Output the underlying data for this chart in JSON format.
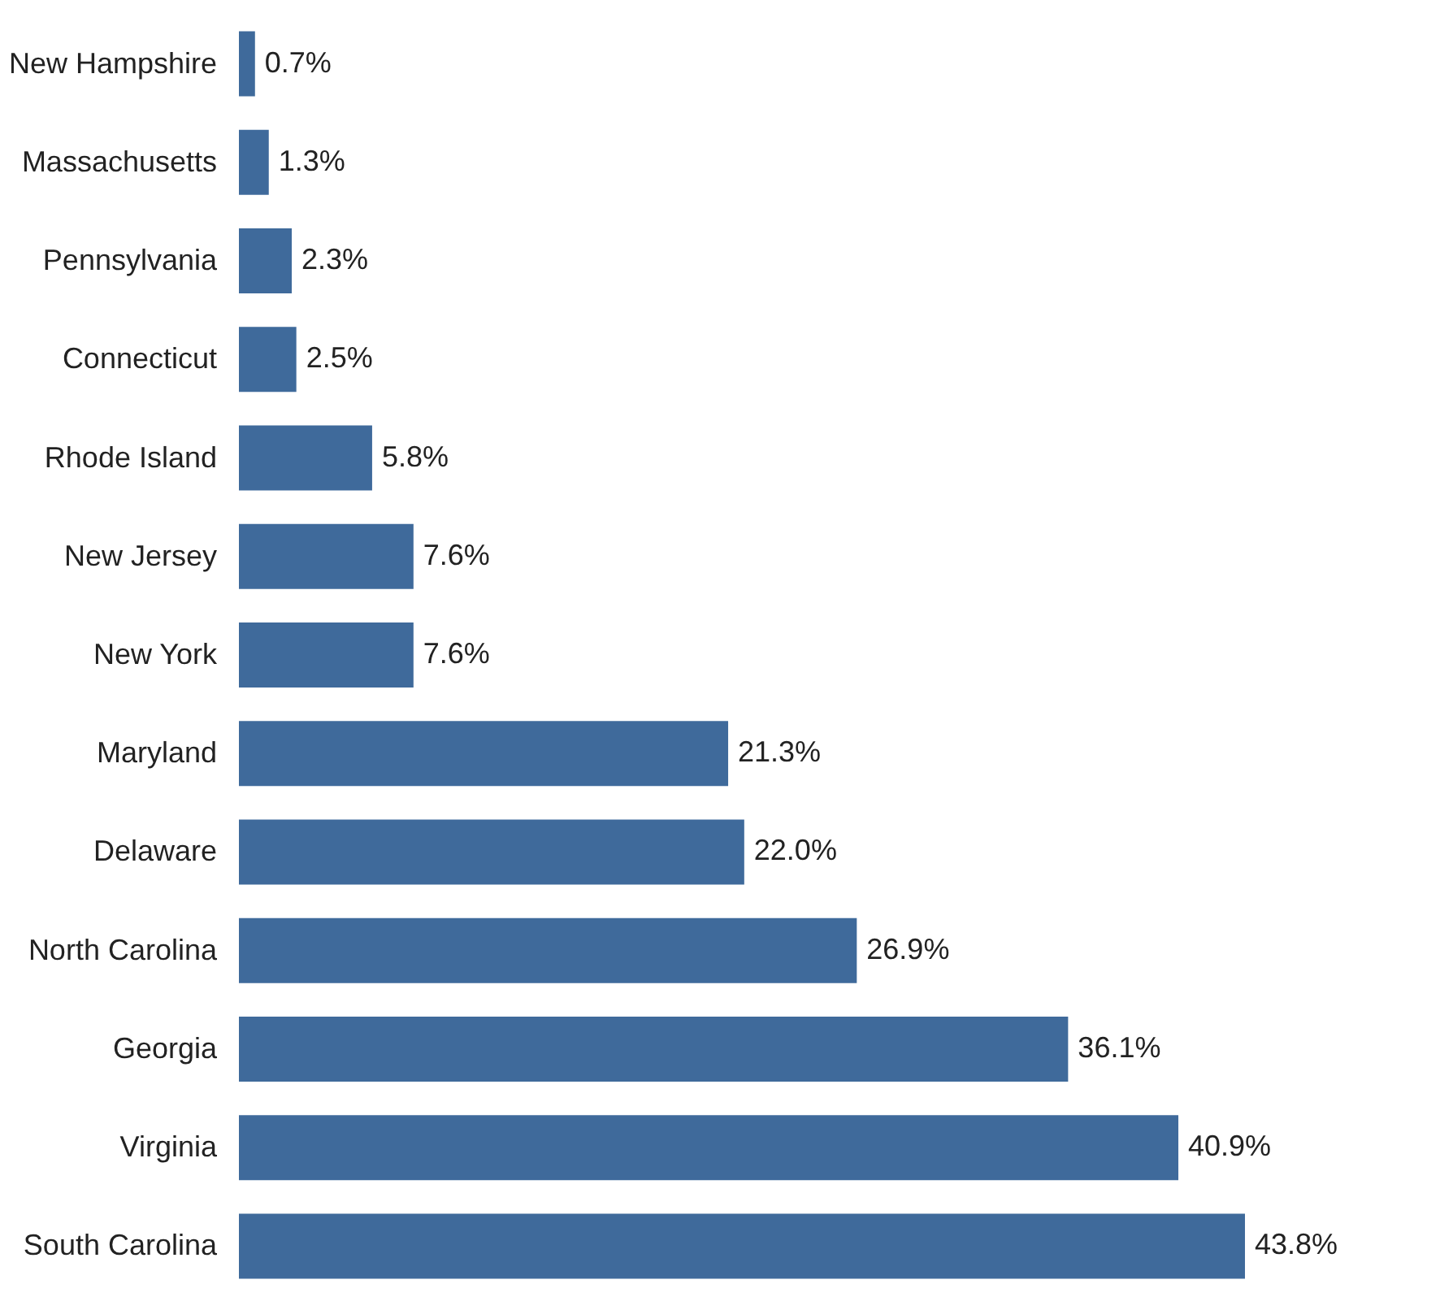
{
  "chart_data": {
    "type": "bar",
    "orientation": "horizontal",
    "categories": [
      "New Hampshire",
      "Massachusetts",
      "Pennsylvania",
      "Connecticut",
      "Rhode Island",
      "New Jersey",
      "New York",
      "Maryland",
      "Delaware",
      "North Carolina",
      "Georgia",
      "Virginia",
      "South Carolina"
    ],
    "values": [
      0.7,
      1.3,
      2.3,
      2.5,
      5.8,
      7.6,
      7.6,
      21.3,
      22.0,
      26.9,
      36.1,
      40.9,
      43.8
    ],
    "value_labels": [
      "0.7%",
      "1.3%",
      "2.3%",
      "2.5%",
      "5.8%",
      "7.6%",
      "7.6%",
      "21.3%",
      "22.0%",
      "26.9%",
      "36.1%",
      "40.9%",
      "43.8%"
    ],
    "color": "#3f6a9b",
    "tick_labels": "y"
  }
}
